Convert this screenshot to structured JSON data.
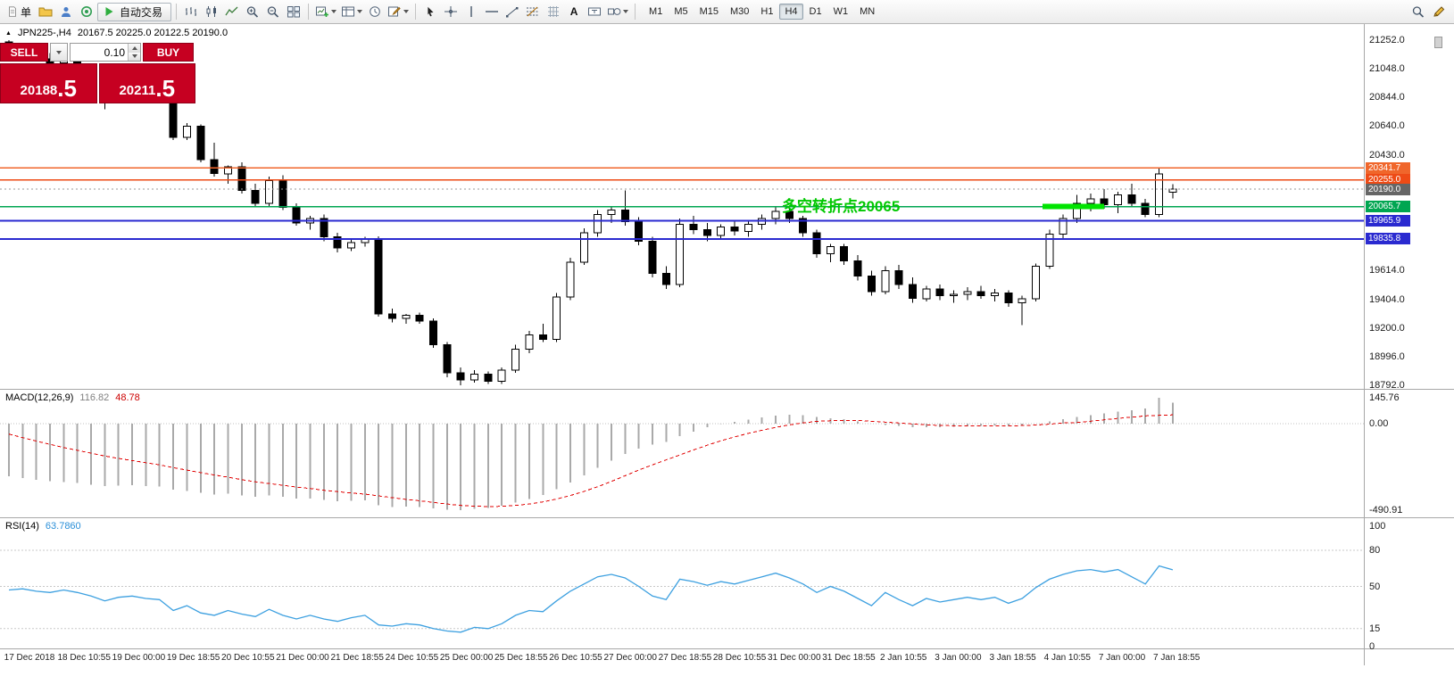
{
  "colors": {
    "panel_red": "#c60021",
    "hline_orange_1": "#f0662b",
    "hline_orange_2": "#ee4b16",
    "hline_green": "#00a651",
    "hline_blue": "#2a2ad0",
    "current_price_gray": "#999999",
    "annotation_green": "#00c800",
    "zone_green": "#00e400",
    "macd_histogram": "#a9a9a9",
    "macd_signal": "#e00000",
    "rsi_line": "#3da0e0"
  },
  "toolbar": {
    "new_order_label": "单",
    "autotrading_label": "自动交易",
    "text_tool_label": "A",
    "timeframes": [
      "M1",
      "M5",
      "M15",
      "M30",
      "H1",
      "H4",
      "D1",
      "W1",
      "MN"
    ],
    "active_timeframe": "H4"
  },
  "chart_header": {
    "symbol_period": "JPN225-,H4",
    "ohlc": "20167.5 20225.0 20122.5 20190.0"
  },
  "trade_panel": {
    "sell_label": "SELL",
    "buy_label": "BUY",
    "volume": "0.10",
    "sell_price_main": "20188",
    "sell_price_frac": ".5",
    "buy_price_main": "20211",
    "buy_price_frac": ".5"
  },
  "macd_label": {
    "name": "MACD(12,26,9)",
    "value_main": "116.82",
    "value_signal": "48.78"
  },
  "rsi_label": {
    "name": "RSI(14)",
    "value": "63.7860"
  },
  "axes": {
    "price_ticks": [
      {
        "value": 21252.0,
        "label": "21252.0"
      },
      {
        "value": 21048.0,
        "label": "21048.0"
      },
      {
        "value": 20844.0,
        "label": "20844.0"
      },
      {
        "value": 20640.0,
        "label": "20640.0"
      },
      {
        "value": 20430.0,
        "label": "20430.0"
      },
      {
        "value": 19614.0,
        "label": "19614.0"
      },
      {
        "value": 19404.0,
        "label": "19404.0"
      },
      {
        "value": 19200.0,
        "label": "19200.0"
      },
      {
        "value": 18996.0,
        "label": "18996.0"
      },
      {
        "value": 18792.0,
        "label": "18792.0"
      }
    ],
    "price_tags": [
      {
        "value": 20341.7,
        "label": "20341.7",
        "bg": "#f0662b"
      },
      {
        "value": 20255.0,
        "label": "20255.0",
        "bg": "#ee4b16"
      },
      {
        "value": 20190.0,
        "label": "20190.0",
        "bg": "#666666"
      },
      {
        "value": 20065.7,
        "label": "20065.7",
        "bg": "#00a651"
      },
      {
        "value": 19965.9,
        "label": "19965.9",
        "bg": "#2a2ad0"
      },
      {
        "value": 19835.8,
        "label": "19835.8",
        "bg": "#2a2ad0"
      }
    ],
    "macd_ticks": [
      {
        "value": 145.76,
        "label": "145.76"
      },
      {
        "value": 0,
        "label": "0.00"
      },
      {
        "value": -490.91,
        "label": "-490.91"
      }
    ],
    "rsi_ticks": [
      {
        "value": 100,
        "label": "100"
      },
      {
        "value": 80,
        "label": "80"
      },
      {
        "value": 50,
        "label": "50"
      },
      {
        "value": 15,
        "label": "15"
      },
      {
        "value": 0,
        "label": "0"
      }
    ],
    "time_labels": [
      "17 Dec 2018",
      "18 Dec 10:55",
      "19 Dec 00:00",
      "19 Dec 18:55",
      "20 Dec 10:55",
      "21 Dec 00:00",
      "21 Dec 18:55",
      "24 Dec 10:55",
      "25 Dec 00:00",
      "25 Dec 18:55",
      "26 Dec 10:55",
      "27 Dec 00:00",
      "27 Dec 18:55",
      "28 Dec 10:55",
      "31 Dec 00:00",
      "31 Dec 18:55",
      "2 Jan 10:55",
      "3 Jan 00:00",
      "3 Jan 18:55",
      "4 Jan 10:55",
      "7 Jan 00:00",
      "7 Jan 18:55"
    ]
  },
  "chart_data": [
    {
      "type": "candlestick",
      "symbol": "JPN225-",
      "timeframe": "H4",
      "ohlc_current": {
        "open": 20167.5,
        "high": 20225.0,
        "low": 20122.5,
        "close": 20190.0
      },
      "bid": 20188.5,
      "ask": 20211.5,
      "y_range": [
        18792.0,
        21252.0
      ],
      "candles": [
        [
          21240,
          21252,
          21180,
          21200
        ],
        [
          21200,
          21230,
          21140,
          21160
        ],
        [
          21160,
          21190,
          21100,
          21120
        ],
        [
          21120,
          21160,
          21070,
          21090
        ],
        [
          21090,
          21130,
          21040,
          21110
        ],
        [
          21110,
          21140,
          21030,
          21060
        ],
        [
          21060,
          21080,
          20960,
          20990
        ],
        [
          20990,
          21010,
          20760,
          20860
        ],
        [
          20860,
          20940,
          20830,
          20920
        ],
        [
          20920,
          20950,
          20860,
          20880
        ],
        [
          20880,
          20910,
          20830,
          20870
        ],
        [
          20870,
          20890,
          20820,
          20850
        ],
        [
          20850,
          20860,
          20540,
          20560
        ],
        [
          20560,
          20660,
          20540,
          20640
        ],
        [
          20640,
          20650,
          20380,
          20400
        ],
        [
          20400,
          20520,
          20280,
          20300
        ],
        [
          20300,
          20360,
          20230,
          20350
        ],
        [
          20350,
          20380,
          20160,
          20180
        ],
        [
          20180,
          20230,
          20060,
          20090
        ],
        [
          20090,
          20280,
          20060,
          20250
        ],
        [
          20250,
          20290,
          20040,
          20060
        ],
        [
          20060,
          20090,
          19930,
          19950
        ],
        [
          19950,
          20000,
          19900,
          19980
        ],
        [
          19980,
          20010,
          19820,
          19850
        ],
        [
          19850,
          19880,
          19740,
          19770
        ],
        [
          19770,
          19830,
          19750,
          19810
        ],
        [
          19810,
          19850,
          19780,
          19830
        ],
        [
          19830,
          19855,
          19280,
          19300
        ],
        [
          19300,
          19340,
          19240,
          19270
        ],
        [
          19270,
          19300,
          19230,
          19290
        ],
        [
          19290,
          19310,
          19230,
          19250
        ],
        [
          19250,
          19270,
          19060,
          19080
        ],
        [
          19080,
          19100,
          18850,
          18880
        ],
        [
          18880,
          18920,
          18792,
          18830
        ],
        [
          18830,
          18900,
          18810,
          18870
        ],
        [
          18870,
          18890,
          18800,
          18820
        ],
        [
          18820,
          18920,
          18800,
          18900
        ],
        [
          18900,
          19080,
          18880,
          19050
        ],
        [
          19050,
          19180,
          19020,
          19150
        ],
        [
          19150,
          19230,
          19100,
          19120
        ],
        [
          19120,
          19450,
          19100,
          19420
        ],
        [
          19420,
          19700,
          19400,
          19670
        ],
        [
          19670,
          19910,
          19650,
          19880
        ],
        [
          19880,
          20040,
          19850,
          20010
        ],
        [
          20010,
          20070,
          19950,
          20040
        ],
        [
          20040,
          20180,
          19930,
          19960
        ],
        [
          19960,
          19990,
          19790,
          19820
        ],
        [
          19820,
          19850,
          19560,
          19590
        ],
        [
          19590,
          19640,
          19480,
          19510
        ],
        [
          19510,
          19980,
          19490,
          19940
        ],
        [
          19940,
          20000,
          19870,
          19900
        ],
        [
          19900,
          19950,
          19820,
          19860
        ],
        [
          19860,
          19940,
          19830,
          19920
        ],
        [
          19920,
          19970,
          19860,
          19890
        ],
        [
          19890,
          19960,
          19850,
          19940
        ],
        [
          19940,
          20010,
          19900,
          19980
        ],
        [
          19980,
          20060,
          19940,
          20030
        ],
        [
          20030,
          20050,
          19950,
          19980
        ],
        [
          19980,
          20000,
          19850,
          19880
        ],
        [
          19880,
          19900,
          19700,
          19730
        ],
        [
          19730,
          19800,
          19670,
          19780
        ],
        [
          19780,
          19800,
          19650,
          19680
        ],
        [
          19680,
          19720,
          19540,
          19570
        ],
        [
          19570,
          19610,
          19430,
          19460
        ],
        [
          19460,
          19640,
          19440,
          19610
        ],
        [
          19610,
          19650,
          19480,
          19510
        ],
        [
          19510,
          19560,
          19380,
          19410
        ],
        [
          19410,
          19500,
          19390,
          19480
        ],
        [
          19480,
          19510,
          19400,
          19430
        ],
        [
          19430,
          19470,
          19380,
          19440
        ],
        [
          19440,
          19490,
          19400,
          19460
        ],
        [
          19460,
          19500,
          19410,
          19430
        ],
        [
          19430,
          19480,
          19390,
          19450
        ],
        [
          19450,
          19470,
          19350,
          19380
        ],
        [
          19380,
          19430,
          19220,
          19410
        ],
        [
          19410,
          19660,
          19390,
          19640
        ],
        [
          19640,
          19900,
          19620,
          19870
        ],
        [
          19870,
          20010,
          19840,
          19980
        ],
        [
          19980,
          20150,
          19950,
          20090
        ],
        [
          20090,
          20160,
          20030,
          20120
        ],
        [
          20120,
          20190,
          20050,
          20080
        ],
        [
          20080,
          20170,
          20020,
          20150
        ],
        [
          20150,
          20230,
          20060,
          20090
        ],
        [
          20090,
          20120,
          19990,
          20010
        ],
        [
          20010,
          20341.7,
          19990,
          20300
        ],
        [
          20167.5,
          20225.0,
          20122.5,
          20190.0
        ]
      ],
      "hlines": [
        {
          "price": 20341.7,
          "color": "#f0662b",
          "width": 1.5
        },
        {
          "price": 20255.0,
          "color": "#ee4b16",
          "width": 1.5
        },
        {
          "price": 20190.0,
          "color": "#999999",
          "width": 1,
          "dash": "2 3"
        },
        {
          "price": 20065.7,
          "color": "#00a651",
          "width": 1.5
        },
        {
          "price": 19965.9,
          "color": "#2a2ad0",
          "width": 2
        },
        {
          "price": 19835.8,
          "color": "#2a2ad0",
          "width": 2
        }
      ],
      "highlight_zone": {
        "price": 20065.7,
        "from_index": 75.5,
        "to_index": 80,
        "color": "#00e400"
      },
      "annotation": {
        "text": "多空转折点20065",
        "color": "#00c800"
      }
    },
    {
      "type": "bar",
      "name": "MACD",
      "params": "12,26,9",
      "current_main": 116.82,
      "current_signal": 48.78,
      "ylim": [
        -490.91,
        145.76
      ],
      "histogram_color": "#a9a9a9",
      "signal_color": "#e00000",
      "values": [
        -300,
        -310,
        -318,
        -326,
        -332,
        -338,
        -346,
        -354,
        -352,
        -350,
        -354,
        -358,
        -375,
        -382,
        -392,
        -402,
        -398,
        -408,
        -414,
        -408,
        -416,
        -426,
        -424,
        -434,
        -440,
        -438,
        -436,
        -462,
        -472,
        -470,
        -474,
        -481,
        -488,
        -490.91,
        -484,
        -478,
        -466,
        -448,
        -428,
        -405,
        -372,
        -335,
        -295,
        -252,
        -210,
        -172,
        -142,
        -120,
        -104,
        -72,
        -45,
        -22,
        -4,
        10,
        22,
        34,
        45,
        50,
        46,
        36,
        30,
        24,
        12,
        -2,
        -8,
        -14,
        -22,
        -22,
        -20,
        -18,
        -14,
        -13,
        -12,
        -14,
        -10,
        0,
        12,
        24,
        36,
        48,
        58,
        68,
        76,
        86,
        145.76,
        116.82
      ],
      "signal": [
        -60,
        -80,
        -100,
        -118,
        -136,
        -152,
        -168,
        -184,
        -198,
        -210,
        -222,
        -234,
        -250,
        -264,
        -278,
        -292,
        -304,
        -318,
        -330,
        -340,
        -350,
        -360,
        -368,
        -378,
        -386,
        -394,
        -400,
        -410,
        -420,
        -430,
        -438,
        -447,
        -456,
        -464,
        -468,
        -470,
        -469,
        -464,
        -456,
        -444,
        -428,
        -408,
        -385,
        -358,
        -328,
        -296,
        -264,
        -234,
        -206,
        -178,
        -150,
        -123,
        -98,
        -76,
        -56,
        -38,
        -22,
        -8,
        4,
        12,
        16,
        18,
        17,
        13,
        8,
        3,
        -3,
        -8,
        -11,
        -13,
        -13,
        -13,
        -13,
        -13,
        -12,
        -9,
        -4,
        3,
        6,
        13,
        21,
        29,
        36,
        43,
        46,
        48.78
      ]
    },
    {
      "type": "line",
      "name": "RSI",
      "period": 14,
      "current": 63.786,
      "ylim": [
        0,
        100
      ],
      "levels": [
        80,
        50,
        15
      ],
      "line_color": "#3da0e0",
      "values": [
        47,
        48,
        46,
        45,
        47,
        45,
        42,
        38,
        41,
        42,
        40,
        39,
        30,
        34,
        28,
        26,
        30,
        27,
        25,
        31,
        26,
        23,
        26,
        23,
        21,
        24,
        26,
        18,
        17,
        19,
        18,
        15,
        13,
        12,
        16,
        15,
        19,
        26,
        30,
        29,
        38,
        46,
        52,
        58,
        60,
        57,
        50,
        42,
        39,
        56,
        54,
        51,
        54,
        52,
        55,
        58,
        61,
        57,
        52,
        45,
        50,
        46,
        40,
        34,
        45,
        39,
        34,
        40,
        37,
        39,
        41,
        39,
        41,
        36,
        40,
        49,
        56,
        60,
        63,
        64,
        62,
        64,
        58,
        52,
        67,
        63.786
      ]
    }
  ]
}
